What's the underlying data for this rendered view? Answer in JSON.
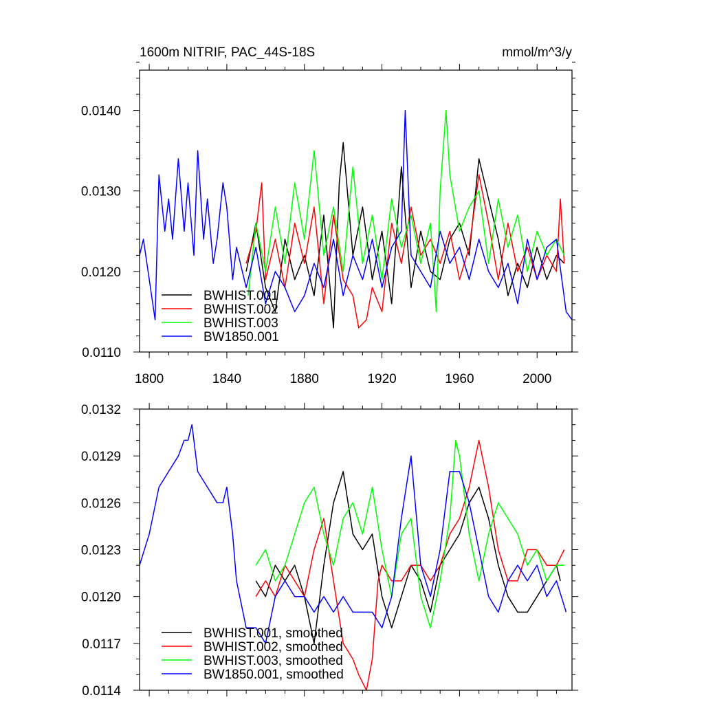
{
  "header": {
    "title": "1600m NITRIF, PAC_44S-18S",
    "units": "mmol/m^3/y"
  },
  "chart_data": [
    {
      "type": "line",
      "panel": "top",
      "title": "1600m NITRIF, PAC_44S-18S",
      "ylabel": "mmol/m^3/y",
      "xlim": [
        1795,
        2018
      ],
      "ylim": [
        0.011,
        0.0145
      ],
      "xticks": [
        1800,
        1840,
        1880,
        1920,
        1960,
        2000
      ],
      "xtick_labels": [
        "1800",
        "1840",
        "1880",
        "1920",
        "1960",
        "2000"
      ],
      "yticks": [
        0.011,
        0.012,
        0.013,
        0.014
      ],
      "ytick_labels": [
        "0.0110",
        "0.0120",
        "0.0130",
        "0.0140"
      ],
      "legend_position": "bottom-left",
      "series": [
        {
          "name": "BWHIST.001",
          "color": "#000000",
          "x": [
            1850,
            1855,
            1860,
            1865,
            1870,
            1875,
            1880,
            1885,
            1890,
            1895,
            1898,
            1900,
            1905,
            1910,
            1915,
            1920,
            1925,
            1930,
            1935,
            1940,
            1945,
            1950,
            1955,
            1960,
            1965,
            1970,
            1975,
            1980,
            1985,
            1990,
            1995,
            2000,
            2005,
            2010,
            2014
          ],
          "values": [
            0.012,
            0.0126,
            0.0118,
            0.0115,
            0.0124,
            0.0119,
            0.0122,
            0.0117,
            0.0127,
            0.0113,
            0.0131,
            0.0136,
            0.0122,
            0.0128,
            0.0119,
            0.0125,
            0.0116,
            0.0133,
            0.0118,
            0.0125,
            0.012,
            0.0119,
            0.0124,
            0.0126,
            0.0122,
            0.0134,
            0.0129,
            0.0124,
            0.0117,
            0.0121,
            0.0118,
            0.0123,
            0.0119,
            0.0122,
            0.0121
          ]
        },
        {
          "name": "BWHIST.002",
          "color": "#ff0000",
          "x": [
            1850,
            1855,
            1858,
            1860,
            1865,
            1870,
            1875,
            1880,
            1885,
            1890,
            1895,
            1900,
            1905,
            1908,
            1912,
            1915,
            1920,
            1925,
            1930,
            1935,
            1940,
            1945,
            1950,
            1955,
            1960,
            1965,
            1970,
            1975,
            1980,
            1985,
            1990,
            1995,
            2000,
            2005,
            2010,
            2012,
            2014
          ],
          "values": [
            0.0121,
            0.0125,
            0.0131,
            0.0119,
            0.0124,
            0.0118,
            0.0126,
            0.0121,
            0.0128,
            0.0116,
            0.0127,
            0.0119,
            0.0117,
            0.0113,
            0.0114,
            0.0118,
            0.0115,
            0.0126,
            0.0121,
            0.0128,
            0.0122,
            0.0124,
            0.0121,
            0.0125,
            0.0119,
            0.0123,
            0.0132,
            0.0126,
            0.0119,
            0.0126,
            0.012,
            0.0123,
            0.0119,
            0.0122,
            0.012,
            0.0129,
            0.0121
          ]
        },
        {
          "name": "BWHIST.003",
          "color": "#00ff00",
          "x": [
            1851,
            1855,
            1860,
            1865,
            1870,
            1875,
            1880,
            1885,
            1890,
            1895,
            1900,
            1905,
            1910,
            1915,
            1920,
            1925,
            1930,
            1935,
            1940,
            1945,
            1948,
            1950,
            1953,
            1955,
            1960,
            1965,
            1970,
            1975,
            1980,
            1985,
            1990,
            1995,
            2000,
            2005,
            2010,
            2014
          ],
          "values": [
            0.0117,
            0.0126,
            0.012,
            0.0128,
            0.0121,
            0.0131,
            0.0124,
            0.0135,
            0.0122,
            0.0128,
            0.012,
            0.0133,
            0.0121,
            0.0127,
            0.0119,
            0.0129,
            0.0123,
            0.0127,
            0.0121,
            0.0126,
            0.0115,
            0.013,
            0.014,
            0.0132,
            0.0125,
            0.0128,
            0.013,
            0.0121,
            0.0129,
            0.0123,
            0.0127,
            0.012,
            0.0125,
            0.0122,
            0.0124,
            0.0122
          ]
        },
        {
          "name": "BW1850.001",
          "color": "#0000ff",
          "x": [
            1795,
            1797,
            1800,
            1803,
            1805,
            1808,
            1810,
            1812,
            1815,
            1818,
            1820,
            1823,
            1825,
            1828,
            1830,
            1833,
            1835,
            1838,
            1840,
            1843,
            1845,
            1850,
            1855,
            1860,
            1865,
            1870,
            1875,
            1880,
            1885,
            1890,
            1895,
            1900,
            1905,
            1910,
            1915,
            1920,
            1925,
            1930,
            1932,
            1935,
            1940,
            1945,
            1950,
            1955,
            1960,
            1965,
            1970,
            1975,
            1980,
            1985,
            1990,
            1995,
            2000,
            2005,
            2010,
            2015,
            2018
          ],
          "values": [
            0.0122,
            0.0124,
            0.0119,
            0.0114,
            0.0132,
            0.0125,
            0.0129,
            0.0124,
            0.0134,
            0.0125,
            0.0131,
            0.0122,
            0.0135,
            0.0124,
            0.0129,
            0.0121,
            0.0124,
            0.0131,
            0.0128,
            0.0119,
            0.0123,
            0.0118,
            0.0123,
            0.0116,
            0.012,
            0.0118,
            0.0115,
            0.0117,
            0.0121,
            0.0118,
            0.0124,
            0.0117,
            0.0122,
            0.0119,
            0.0124,
            0.0118,
            0.0123,
            0.0125,
            0.014,
            0.0122,
            0.012,
            0.0118,
            0.0125,
            0.0121,
            0.0123,
            0.0119,
            0.0124,
            0.012,
            0.0118,
            0.0121,
            0.0116,
            0.0124,
            0.0119,
            0.0123,
            0.0124,
            0.0115,
            0.0114
          ]
        }
      ]
    },
    {
      "type": "line",
      "panel": "bottom",
      "xlim": [
        1795,
        2018
      ],
      "ylim": [
        0.0114,
        0.0132
      ],
      "xticks": [
        1800,
        1840,
        1880,
        1920,
        1960,
        2000
      ],
      "yticks": [
        0.0114,
        0.0117,
        0.012,
        0.0123,
        0.0126,
        0.0129,
        0.0132
      ],
      "ytick_labels": [
        "0.0114",
        "0.0117",
        "0.0120",
        "0.0123",
        "0.0126",
        "0.0129",
        "0.0132"
      ],
      "legend_position": "bottom-left",
      "series": [
        {
          "name": "BWHIST.001, smoothed",
          "color": "#000000",
          "x": [
            1855,
            1860,
            1865,
            1870,
            1875,
            1880,
            1885,
            1890,
            1895,
            1900,
            1905,
            1910,
            1915,
            1920,
            1925,
            1930,
            1935,
            1940,
            1945,
            1950,
            1955,
            1960,
            1965,
            1970,
            1975,
            1980,
            1985,
            1990,
            1995,
            2000,
            2005,
            2010,
            2012
          ],
          "values": [
            0.0121,
            0.012,
            0.0122,
            0.0121,
            0.0122,
            0.012,
            0.0117,
            0.0122,
            0.0126,
            0.0128,
            0.0124,
            0.0123,
            0.0124,
            0.012,
            0.0118,
            0.012,
            0.0122,
            0.0121,
            0.0119,
            0.0122,
            0.0123,
            0.0124,
            0.0126,
            0.0127,
            0.0125,
            0.0122,
            0.012,
            0.0119,
            0.0119,
            0.012,
            0.0121,
            0.0122,
            0.0121
          ]
        },
        {
          "name": "BWHIST.002, smoothed",
          "color": "#ff0000",
          "x": [
            1855,
            1860,
            1865,
            1870,
            1875,
            1880,
            1885,
            1890,
            1895,
            1900,
            1905,
            1908,
            1912,
            1915,
            1918,
            1920,
            1925,
            1930,
            1935,
            1940,
            1945,
            1950,
            1955,
            1960,
            1965,
            1970,
            1975,
            1980,
            1985,
            1990,
            1995,
            2000,
            2005,
            2010,
            2014
          ],
          "values": [
            0.012,
            0.0121,
            0.012,
            0.0122,
            0.0121,
            0.012,
            0.0123,
            0.0125,
            0.0121,
            0.0117,
            0.0116,
            0.0115,
            0.0114,
            0.0116,
            0.0121,
            0.0122,
            0.0121,
            0.0121,
            0.0122,
            0.0122,
            0.0121,
            0.0122,
            0.0124,
            0.0125,
            0.0127,
            0.013,
            0.0127,
            0.0123,
            0.0121,
            0.0121,
            0.0123,
            0.0123,
            0.0122,
            0.0122,
            0.0123
          ]
        },
        {
          "name": "BWHIST.003, smoothed",
          "color": "#00ff00",
          "x": [
            1855,
            1860,
            1865,
            1870,
            1875,
            1880,
            1885,
            1890,
            1895,
            1900,
            1905,
            1910,
            1915,
            1920,
            1925,
            1930,
            1935,
            1940,
            1945,
            1950,
            1955,
            1958,
            1960,
            1965,
            1970,
            1975,
            1980,
            1985,
            1990,
            1995,
            2000,
            2005,
            2010,
            2014
          ],
          "values": [
            0.0122,
            0.0123,
            0.0121,
            0.0122,
            0.0124,
            0.0126,
            0.0127,
            0.0124,
            0.0122,
            0.0125,
            0.0126,
            0.0124,
            0.0127,
            0.0123,
            0.012,
            0.0124,
            0.0125,
            0.012,
            0.0118,
            0.0121,
            0.0125,
            0.013,
            0.0129,
            0.0124,
            0.0121,
            0.0124,
            0.0126,
            0.0125,
            0.0124,
            0.0122,
            0.0123,
            0.0121,
            0.0122,
            0.0122
          ]
        },
        {
          "name": "BW1850.001, smoothed",
          "color": "#0000ff",
          "x": [
            1795,
            1800,
            1805,
            1810,
            1815,
            1818,
            1820,
            1822,
            1825,
            1830,
            1835,
            1838,
            1840,
            1843,
            1845,
            1850,
            1855,
            1860,
            1865,
            1870,
            1875,
            1880,
            1885,
            1890,
            1895,
            1900,
            1905,
            1910,
            1915,
            1920,
            1925,
            1930,
            1935,
            1940,
            1945,
            1950,
            1955,
            1960,
            1965,
            1970,
            1975,
            1980,
            1985,
            1990,
            1995,
            2000,
            2005,
            2010,
            2015
          ],
          "values": [
            0.0122,
            0.0124,
            0.0127,
            0.0128,
            0.0129,
            0.013,
            0.013,
            0.0131,
            0.0128,
            0.0127,
            0.0126,
            0.0126,
            0.0127,
            0.0124,
            0.0121,
            0.0118,
            0.0118,
            0.0117,
            0.012,
            0.0121,
            0.012,
            0.012,
            0.0119,
            0.012,
            0.0119,
            0.012,
            0.0119,
            0.0119,
            0.0119,
            0.0118,
            0.012,
            0.0125,
            0.0129,
            0.0122,
            0.012,
            0.0123,
            0.0128,
            0.0128,
            0.0126,
            0.0123,
            0.012,
            0.0119,
            0.0121,
            0.0122,
            0.0121,
            0.0122,
            0.012,
            0.0121,
            0.0119
          ]
        }
      ]
    }
  ]
}
